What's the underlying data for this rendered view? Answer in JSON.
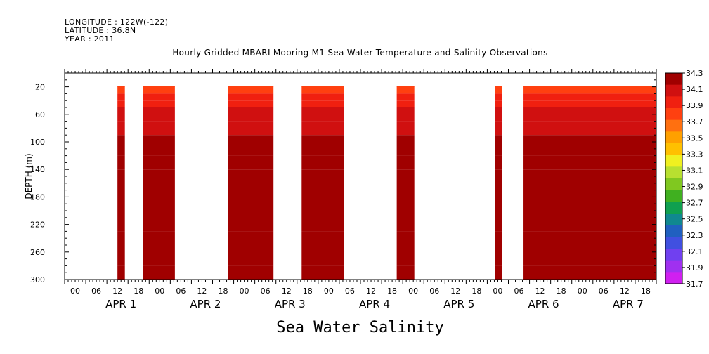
{
  "header": {
    "longitude": "LONGITUDE : 122W(-122)",
    "latitude": "LATITUDE : 36.8N",
    "year": "YEAR : 2011"
  },
  "caption": "Sea Water Salinity",
  "chart_data": {
    "type": "heatmap",
    "title": "Hourly Gridded MBARI Mooring M1 Sea Water Temperature and Salinity Observations",
    "ylabel": "DEPTH (m)",
    "xlabel": "",
    "ylim": [
      300,
      0
    ],
    "yticks": [
      20,
      60,
      100,
      140,
      180,
      220,
      260,
      300
    ],
    "xlim_hours": [
      0,
      168
    ],
    "hour_ticks": [
      "00",
      "06",
      "12",
      "18",
      "00",
      "06",
      "12",
      "18",
      "00",
      "06",
      "12",
      "18",
      "00",
      "06",
      "12",
      "18",
      "00",
      "06",
      "12",
      "18",
      "00",
      "06",
      "12",
      "18",
      "00",
      "06",
      "12",
      "18"
    ],
    "day_labels": [
      "APR 1",
      "APR 2",
      "APR 3",
      "APR 4",
      "APR 5",
      "APR 6",
      "APR 7"
    ],
    "colorbar": {
      "levels": [
        31.7,
        31.9,
        32.1,
        32.3,
        32.5,
        32.7,
        32.9,
        33.1,
        33.3,
        33.5,
        33.7,
        33.9,
        34.1,
        34.3
      ],
      "colors": [
        "#d020f0",
        "#a030f0",
        "#7040f0",
        "#4050e0",
        "#2060c0",
        "#108890",
        "#10a050",
        "#40b020",
        "#80c820",
        "#b8e030",
        "#f0f020",
        "#ffc000",
        "#ffa000",
        "#ff7010",
        "#ff4010",
        "#f02010",
        "#d01010",
        "#a00000"
      ]
    },
    "data_blocks_hours": [
      [
        15.0,
        17.1
      ],
      [
        22.2,
        31.3
      ],
      [
        46.3,
        59.3
      ],
      [
        67.3,
        79.3
      ],
      [
        94.3,
        99.3
      ],
      [
        122.3,
        124.3
      ],
      [
        130.3,
        168.0
      ]
    ],
    "depth_profile": [
      {
        "depth_to": 20,
        "salinity": 33.5
      },
      {
        "depth_to": 30,
        "salinity": 33.6
      },
      {
        "depth_to": 40,
        "salinity": 33.75
      },
      {
        "depth_to": 50,
        "salinity": 33.85
      },
      {
        "depth_to": 70,
        "salinity": 33.95
      },
      {
        "depth_to": 90,
        "salinity": 34.05
      },
      {
        "depth_to": 120,
        "salinity": 34.1
      },
      {
        "depth_to": 140,
        "salinity": 34.15
      },
      {
        "depth_to": 190,
        "salinity": 34.2
      },
      {
        "depth_to": 230,
        "salinity": 34.25
      },
      {
        "depth_to": 280,
        "salinity": 34.3
      },
      {
        "depth_to": 300,
        "salinity": 34.25
      }
    ]
  }
}
